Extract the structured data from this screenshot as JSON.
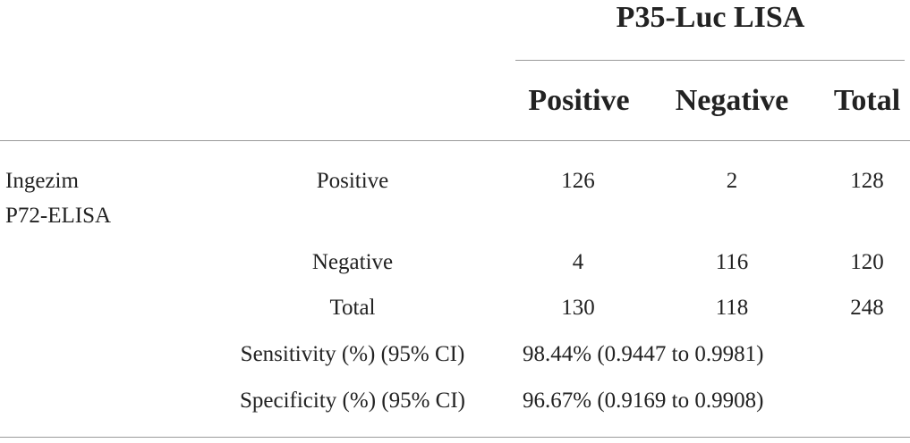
{
  "table": {
    "group_header": "P35-Luc LISA",
    "col_headers": [
      "Positive",
      "Negative",
      "Total"
    ],
    "row_group_label": [
      "Ingezim",
      "P72-ELISA"
    ],
    "rows": [
      {
        "label": "Positive",
        "values": [
          "126",
          "2",
          "128"
        ]
      },
      {
        "label": "Negative",
        "values": [
          "4",
          "116",
          "120"
        ]
      },
      {
        "label": "Total",
        "values": [
          "130",
          "118",
          "248"
        ]
      }
    ],
    "stats": [
      {
        "label": "Sensitivity (%) (95% CI)",
        "value": "98.44% (0.9447 to 0.9981)"
      },
      {
        "label": "Specificity (%) (95% CI)",
        "value": "96.67% (0.9169 to 0.9908)"
      }
    ]
  }
}
